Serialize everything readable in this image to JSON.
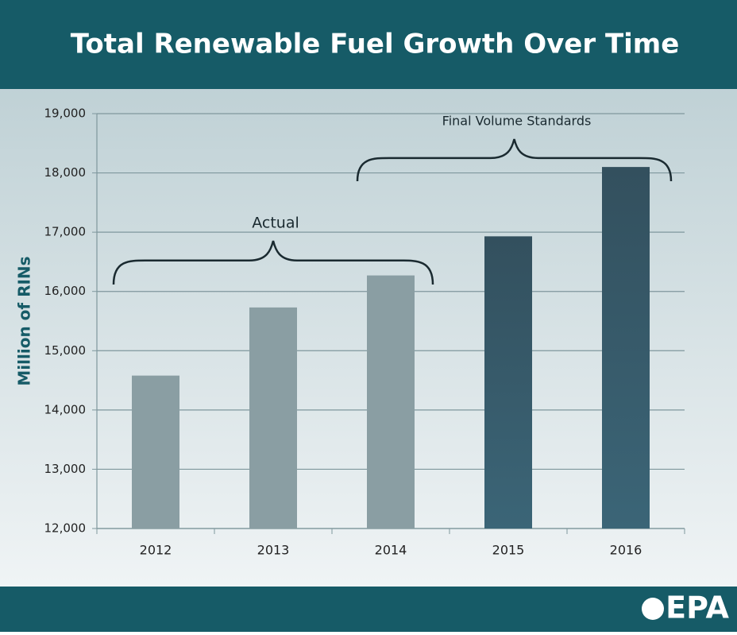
{
  "chart_data": {
    "type": "bar",
    "title": "Total Renewable Fuel Growth Over Time",
    "y_label": "Million of RINs",
    "categories": [
      "2012",
      "2013",
      "2014",
      "2015",
      "2016"
    ],
    "values": [
      14580,
      15730,
      16270,
      16930,
      18100
    ],
    "colors": [
      "#8a9ea3",
      "#8a9ea3",
      "#8a9ea3",
      "#35596a",
      "#35596a"
    ],
    "ylim": [
      12000,
      19000
    ],
    "yticks": [
      {
        "value": 12000,
        "label": "12,000"
      },
      {
        "value": 13000,
        "label": "13,000"
      },
      {
        "value": 14000,
        "label": "14,000"
      },
      {
        "value": 15000,
        "label": "15,000"
      },
      {
        "value": 16000,
        "label": "16,000"
      },
      {
        "value": 17000,
        "label": "17,000"
      },
      {
        "value": 18000,
        "label": "18,000"
      },
      {
        "value": 19000,
        "label": "19,000"
      }
    ],
    "grid": true,
    "annotations": [
      "Actual",
      "Final Volume Standards"
    ]
  },
  "footer": {
    "logo": "EPA"
  }
}
